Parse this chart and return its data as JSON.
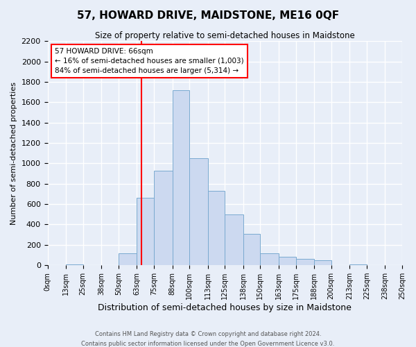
{
  "title": "57, HOWARD DRIVE, MAIDSTONE, ME16 0QF",
  "subtitle": "Size of property relative to semi-detached houses in Maidstone",
  "xlabel": "Distribution of semi-detached houses by size in Maidstone",
  "ylabel": "Number of semi-detached properties",
  "bin_edges": [
    0,
    13,
    25,
    38,
    50,
    63,
    75,
    88,
    100,
    113,
    125,
    138,
    150,
    163,
    175,
    188,
    200,
    213,
    225,
    238,
    250
  ],
  "bin_labels": [
    "0sqm",
    "13sqm",
    "25sqm",
    "38sqm",
    "50sqm",
    "63sqm",
    "75sqm",
    "88sqm",
    "100sqm",
    "113sqm",
    "125sqm",
    "138sqm",
    "150sqm",
    "163sqm",
    "175sqm",
    "188sqm",
    "200sqm",
    "213sqm",
    "225sqm",
    "238sqm",
    "250sqm"
  ],
  "counts": [
    0,
    10,
    0,
    0,
    120,
    660,
    930,
    1720,
    1050,
    730,
    500,
    310,
    120,
    80,
    60,
    50,
    0,
    10,
    0,
    0
  ],
  "bar_color": "#ccd9f0",
  "bar_edge_color": "#7aaad0",
  "property_line_x": 66,
  "property_line_color": "red",
  "annotation_text": "57 HOWARD DRIVE: 66sqm\n← 16% of semi-detached houses are smaller (1,003)\n84% of semi-detached houses are larger (5,314) →",
  "annotation_box_color": "white",
  "annotation_box_edge_color": "red",
  "ylim": [
    0,
    2200
  ],
  "yticks": [
    0,
    200,
    400,
    600,
    800,
    1000,
    1200,
    1400,
    1600,
    1800,
    2000,
    2200
  ],
  "footer_line1": "Contains HM Land Registry data © Crown copyright and database right 2024.",
  "footer_line2": "Contains public sector information licensed under the Open Government Licence v3.0.",
  "background_color": "#e8eef8",
  "grid_color": "white"
}
